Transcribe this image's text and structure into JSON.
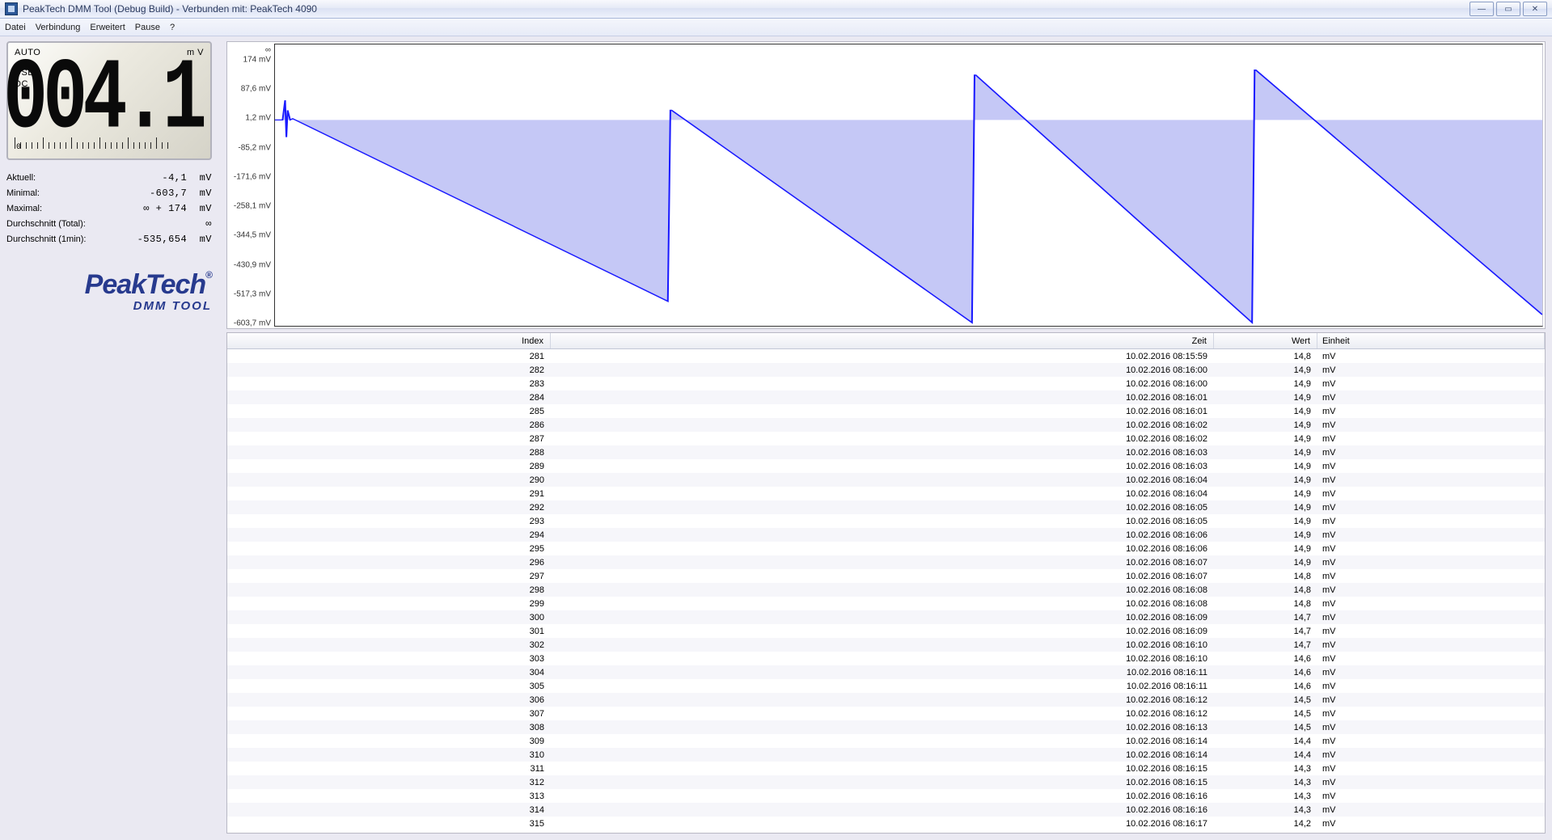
{
  "window": {
    "title": "PeakTech DMM Tool (Debug Build) - Verbunden mit: PeakTech 4090"
  },
  "menubar": {
    "items": [
      "Datei",
      "Verbindung",
      "Erweitert",
      "Pause",
      "?"
    ]
  },
  "lcd": {
    "mode": "AUTO",
    "unit_small": "m  V",
    "conn": "USB",
    "coupling": "DC",
    "main_value": "-004.1",
    "bar_zero_label": "0"
  },
  "stats": {
    "rows": [
      {
        "label": "Aktuell:",
        "value": "-4,1  mV"
      },
      {
        "label": "Minimal:",
        "value": "-603,7  mV"
      },
      {
        "label": "Maximal:",
        "value": "∞ + 174  mV"
      },
      {
        "label": "Durchschnitt (Total):",
        "value": "∞"
      },
      {
        "label": "Durchschnitt (1min):",
        "value": "-535,654  mV"
      }
    ]
  },
  "brand": {
    "name": "PeakTech",
    "reg": "®",
    "sub": "DMM TOOL"
  },
  "chart": {
    "type": "area-line",
    "background_color": "#ffffff",
    "border_color": "#333333",
    "line_color": "#1a1aff",
    "line_width": 1.3,
    "fill_color": "#b5b9f3",
    "fill_opacity": 0.78,
    "y_top_label": "∞",
    "ylim": [
      -603.7,
      174.0
    ],
    "yticks": [
      {
        "v": 174.0,
        "label": "174 mV"
      },
      {
        "v": 87.6,
        "label": "87,6 mV"
      },
      {
        "v": 1.2,
        "label": "1,2 mV"
      },
      {
        "v": -85.2,
        "label": "-85,2 mV"
      },
      {
        "v": -171.6,
        "label": "-171,6 mV"
      },
      {
        "v": -258.1,
        "label": "-258,1 mV"
      },
      {
        "v": -344.5,
        "label": "-344,5 mV"
      },
      {
        "v": -430.9,
        "label": "-430,9 mV"
      },
      {
        "v": -517.3,
        "label": "-517,3 mV"
      },
      {
        "v": -603.7,
        "label": "-603,7 mV"
      }
    ],
    "x_norm_range": [
      0,
      1000
    ],
    "baseline_y": 1.2,
    "spike": {
      "x": 9,
      "up": 60,
      "down": -50,
      "width": 6
    },
    "sawtooth": [
      {
        "x_start": 14,
        "y_start": 5,
        "x_end": 310,
        "y_end": -540,
        "rise_to": 30
      },
      {
        "x_start": 313,
        "y_start": 30,
        "x_end": 550,
        "y_end": -603.7,
        "rise_to": 135
      },
      {
        "x_start": 553,
        "y_start": 135,
        "x_end": 771,
        "y_end": -603.7,
        "rise_to": 150
      },
      {
        "x_start": 774,
        "y_start": 150,
        "x_end": 1000,
        "y_end": -580,
        "rise_to": null
      }
    ]
  },
  "table": {
    "columns": {
      "index": "Index",
      "zeit": "Zeit",
      "wert": "Wert",
      "einheit": "Einheit"
    },
    "rows": [
      {
        "index": 281,
        "zeit": "10.02.2016 08:15:59",
        "wert": "14,8",
        "einheit": "mV"
      },
      {
        "index": 282,
        "zeit": "10.02.2016 08:16:00",
        "wert": "14,9",
        "einheit": "mV"
      },
      {
        "index": 283,
        "zeit": "10.02.2016 08:16:00",
        "wert": "14,9",
        "einheit": "mV"
      },
      {
        "index": 284,
        "zeit": "10.02.2016 08:16:01",
        "wert": "14,9",
        "einheit": "mV"
      },
      {
        "index": 285,
        "zeit": "10.02.2016 08:16:01",
        "wert": "14,9",
        "einheit": "mV"
      },
      {
        "index": 286,
        "zeit": "10.02.2016 08:16:02",
        "wert": "14,9",
        "einheit": "mV"
      },
      {
        "index": 287,
        "zeit": "10.02.2016 08:16:02",
        "wert": "14,9",
        "einheit": "mV"
      },
      {
        "index": 288,
        "zeit": "10.02.2016 08:16:03",
        "wert": "14,9",
        "einheit": "mV"
      },
      {
        "index": 289,
        "zeit": "10.02.2016 08:16:03",
        "wert": "14,9",
        "einheit": "mV"
      },
      {
        "index": 290,
        "zeit": "10.02.2016 08:16:04",
        "wert": "14,9",
        "einheit": "mV"
      },
      {
        "index": 291,
        "zeit": "10.02.2016 08:16:04",
        "wert": "14,9",
        "einheit": "mV"
      },
      {
        "index": 292,
        "zeit": "10.02.2016 08:16:05",
        "wert": "14,9",
        "einheit": "mV"
      },
      {
        "index": 293,
        "zeit": "10.02.2016 08:16:05",
        "wert": "14,9",
        "einheit": "mV"
      },
      {
        "index": 294,
        "zeit": "10.02.2016 08:16:06",
        "wert": "14,9",
        "einheit": "mV"
      },
      {
        "index": 295,
        "zeit": "10.02.2016 08:16:06",
        "wert": "14,9",
        "einheit": "mV"
      },
      {
        "index": 296,
        "zeit": "10.02.2016 08:16:07",
        "wert": "14,9",
        "einheit": "mV"
      },
      {
        "index": 297,
        "zeit": "10.02.2016 08:16:07",
        "wert": "14,8",
        "einheit": "mV"
      },
      {
        "index": 298,
        "zeit": "10.02.2016 08:16:08",
        "wert": "14,8",
        "einheit": "mV"
      },
      {
        "index": 299,
        "zeit": "10.02.2016 08:16:08",
        "wert": "14,8",
        "einheit": "mV"
      },
      {
        "index": 300,
        "zeit": "10.02.2016 08:16:09",
        "wert": "14,7",
        "einheit": "mV"
      },
      {
        "index": 301,
        "zeit": "10.02.2016 08:16:09",
        "wert": "14,7",
        "einheit": "mV"
      },
      {
        "index": 302,
        "zeit": "10.02.2016 08:16:10",
        "wert": "14,7",
        "einheit": "mV"
      },
      {
        "index": 303,
        "zeit": "10.02.2016 08:16:10",
        "wert": "14,6",
        "einheit": "mV"
      },
      {
        "index": 304,
        "zeit": "10.02.2016 08:16:11",
        "wert": "14,6",
        "einheit": "mV"
      },
      {
        "index": 305,
        "zeit": "10.02.2016 08:16:11",
        "wert": "14,6",
        "einheit": "mV"
      },
      {
        "index": 306,
        "zeit": "10.02.2016 08:16:12",
        "wert": "14,5",
        "einheit": "mV"
      },
      {
        "index": 307,
        "zeit": "10.02.2016 08:16:12",
        "wert": "14,5",
        "einheit": "mV"
      },
      {
        "index": 308,
        "zeit": "10.02.2016 08:16:13",
        "wert": "14,5",
        "einheit": "mV"
      },
      {
        "index": 309,
        "zeit": "10.02.2016 08:16:14",
        "wert": "14,4",
        "einheit": "mV"
      },
      {
        "index": 310,
        "zeit": "10.02.2016 08:16:14",
        "wert": "14,4",
        "einheit": "mV"
      },
      {
        "index": 311,
        "zeit": "10.02.2016 08:16:15",
        "wert": "14,3",
        "einheit": "mV"
      },
      {
        "index": 312,
        "zeit": "10.02.2016 08:16:15",
        "wert": "14,3",
        "einheit": "mV"
      },
      {
        "index": 313,
        "zeit": "10.02.2016 08:16:16",
        "wert": "14,3",
        "einheit": "mV"
      },
      {
        "index": 314,
        "zeit": "10.02.2016 08:16:16",
        "wert": "14,3",
        "einheit": "mV"
      },
      {
        "index": 315,
        "zeit": "10.02.2016 08:16:17",
        "wert": "14,2",
        "einheit": "mV"
      }
    ]
  }
}
